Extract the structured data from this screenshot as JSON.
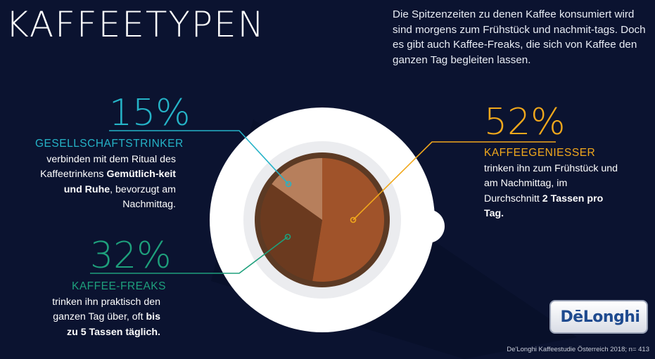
{
  "title": "KAFFEETYPEN",
  "intro": "Die Spitzenzeiten zu denen Kaffee konsumiert wird sind morgens zum Frühstück und nachmit-tags. Doch es gibt auch Kaffee-Freaks, die sich von Kaffee den ganzen Tag begleiten lassen.",
  "colors": {
    "background": "#0b1330",
    "gesellschaftstrinker": "#25b3c7",
    "kaffee_freaks": "#1ea07c",
    "kaffeegeniesser": "#f1a81c",
    "slice_52": "#a0532a",
    "slice_32": "#6b3a1f",
    "slice_15": "#b77f5c"
  },
  "segments": [
    {
      "key": "gesellschaftstrinker",
      "percent": "15%",
      "label": "GESELLSCHAFTSTRINKER",
      "desc_1": "verbinden mit dem Ritual des Kaffeetrinkens ",
      "desc_bold": "Gemütlich-keit und Ruhe",
      "desc_2": ", bevorzugt am Nachmittag."
    },
    {
      "key": "kaffee_freaks",
      "percent": "32%",
      "label": "KAFFEE-FREAKS",
      "desc_1": "trinken ihn praktisch den ganzen Tag über, oft ",
      "desc_bold": "bis zu 5 Tassen täglich."
    },
    {
      "key": "kaffeegeniesser",
      "percent": "52%",
      "label": "KAFFEEGENIESSER",
      "desc_1": "trinken ihn zum Frühstück und am Nachmittag, im Durchschnitt ",
      "desc_bold": "2 Tassen pro Tag."
    }
  ],
  "chart_data": {
    "type": "pie",
    "categories": [
      "KAFFEEGENIESSER",
      "KAFFEE-FREAKS",
      "GESELLSCHAFTSTRINKER"
    ],
    "values": [
      52,
      32,
      15
    ],
    "colors": [
      "#a0532a",
      "#6b3a1f",
      "#b77f5c"
    ]
  },
  "brand": "DēLonghi",
  "source": "De'Longhi Kaffeestudie Österreich 2018; n= 413"
}
